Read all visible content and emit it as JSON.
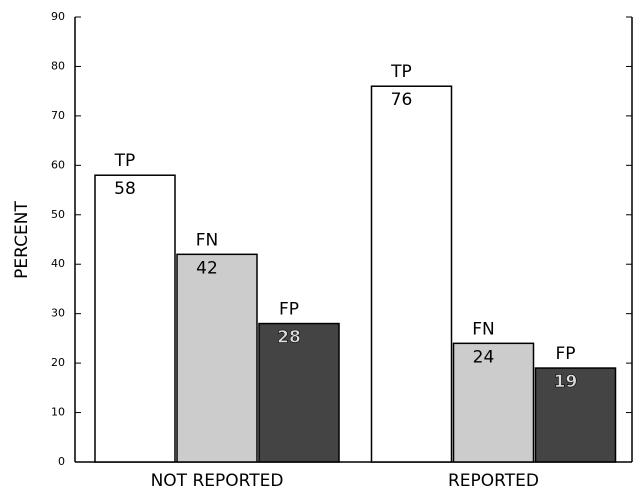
{
  "chart_data": {
    "type": "bar",
    "y_label": "PERCENT",
    "categories": [
      "NOT REPORTED",
      "REPORTED"
    ],
    "series": [
      {
        "name": "TP",
        "color": "#ffffff",
        "values": [
          58,
          76
        ]
      },
      {
        "name": "FN",
        "color": "#cccccc",
        "values": [
          42,
          24
        ]
      },
      {
        "name": "FP",
        "color": "#444444",
        "values": [
          28,
          19
        ]
      }
    ],
    "ylim": [
      0,
      90
    ],
    "yticks": [
      0,
      10,
      20,
      30,
      40,
      50,
      60,
      70,
      80,
      90
    ]
  }
}
